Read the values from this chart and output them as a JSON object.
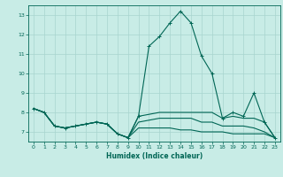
{
  "title": "",
  "xlabel": "Humidex (Indice chaleur)",
  "ylabel": "",
  "background_color": "#c8ece6",
  "grid_color": "#a8d4ce",
  "line_color": "#006655",
  "xlim": [
    -0.5,
    23.5
  ],
  "ylim": [
    6.5,
    13.5
  ],
  "yticks": [
    7,
    8,
    9,
    10,
    11,
    12,
    13
  ],
  "xticks": [
    0,
    1,
    2,
    3,
    4,
    5,
    6,
    7,
    8,
    9,
    10,
    11,
    12,
    13,
    14,
    15,
    16,
    17,
    18,
    19,
    20,
    21,
    22,
    23
  ],
  "series": [
    {
      "x": [
        0,
        1,
        2,
        3,
        4,
        5,
        6,
        7,
        8,
        9,
        10,
        11,
        12,
        13,
        14,
        15,
        16,
        17,
        18,
        19,
        20,
        21,
        22,
        23
      ],
      "y": [
        8.2,
        8.0,
        7.3,
        7.2,
        7.3,
        7.4,
        7.5,
        7.4,
        6.9,
        6.7,
        7.8,
        11.4,
        11.9,
        12.6,
        13.2,
        12.6,
        10.9,
        10.0,
        7.7,
        8.0,
        7.8,
        9.0,
        7.5,
        6.7
      ],
      "marker": true
    },
    {
      "x": [
        0,
        1,
        2,
        3,
        4,
        5,
        6,
        7,
        8,
        9,
        10,
        11,
        12,
        13,
        14,
        15,
        16,
        17,
        18,
        19,
        20,
        21,
        22,
        23
      ],
      "y": [
        8.2,
        8.0,
        7.3,
        7.2,
        7.3,
        7.4,
        7.5,
        7.4,
        6.9,
        6.7,
        7.8,
        7.9,
        8.0,
        8.0,
        8.0,
        8.0,
        8.0,
        8.0,
        7.7,
        7.8,
        7.7,
        7.7,
        7.5,
        6.7
      ],
      "marker": false
    },
    {
      "x": [
        0,
        1,
        2,
        3,
        4,
        5,
        6,
        7,
        8,
        9,
        10,
        11,
        12,
        13,
        14,
        15,
        16,
        17,
        18,
        19,
        20,
        21,
        22,
        23
      ],
      "y": [
        8.2,
        8.0,
        7.3,
        7.2,
        7.3,
        7.4,
        7.5,
        7.4,
        6.9,
        6.7,
        7.5,
        7.6,
        7.7,
        7.7,
        7.7,
        7.7,
        7.5,
        7.5,
        7.3,
        7.3,
        7.3,
        7.2,
        7.0,
        6.7
      ],
      "marker": false
    },
    {
      "x": [
        0,
        1,
        2,
        3,
        4,
        5,
        6,
        7,
        8,
        9,
        10,
        11,
        12,
        13,
        14,
        15,
        16,
        17,
        18,
        19,
        20,
        21,
        22,
        23
      ],
      "y": [
        8.2,
        8.0,
        7.3,
        7.2,
        7.3,
        7.4,
        7.5,
        7.4,
        6.9,
        6.7,
        7.2,
        7.2,
        7.2,
        7.2,
        7.1,
        7.1,
        7.0,
        7.0,
        7.0,
        6.9,
        6.9,
        6.9,
        6.9,
        6.7
      ],
      "marker": false
    }
  ]
}
